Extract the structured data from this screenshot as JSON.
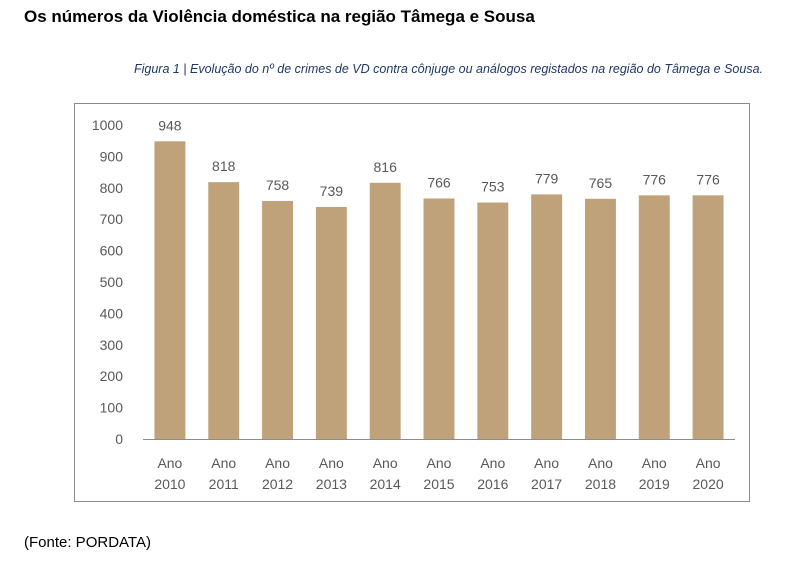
{
  "header": {
    "title": "Os números da Violência doméstica na região Tâmega e Sousa",
    "caption": "Figura 1 | Evolução do nº de crimes de VD contra cônjuge ou análogos registados na região do Tâmega e Sousa."
  },
  "footer": {
    "source": "(Fonte: PORDATA)"
  },
  "chart_data": {
    "type": "bar",
    "categories": [
      "Ano 2010",
      "Ano 2011",
      "Ano 2012",
      "Ano 2013",
      "Ano 2014",
      "Ano 2015",
      "Ano 2016",
      "Ano 2017",
      "Ano 2018",
      "Ano 2019",
      "Ano 2020"
    ],
    "category_lines": [
      [
        "Ano",
        "2010"
      ],
      [
        "Ano",
        "2011"
      ],
      [
        "Ano",
        "2012"
      ],
      [
        "Ano",
        "2013"
      ],
      [
        "Ano",
        "2014"
      ],
      [
        "Ano",
        "2015"
      ],
      [
        "Ano",
        "2016"
      ],
      [
        "Ano",
        "2017"
      ],
      [
        "Ano",
        "2018"
      ],
      [
        "Ano",
        "2019"
      ],
      [
        "Ano",
        "2020"
      ]
    ],
    "values": [
      948,
      818,
      758,
      739,
      816,
      766,
      753,
      779,
      765,
      776,
      776
    ],
    "y_ticks": [
      0,
      100,
      200,
      300,
      400,
      500,
      600,
      700,
      800,
      900,
      1000
    ],
    "ylim": [
      0,
      1000
    ],
    "grid": false,
    "legend": "none",
    "bar_color": "#bfa27a",
    "label_color": "#595959",
    "axis_color": "#8c8c8c",
    "title": "",
    "xlabel": "",
    "ylabel": ""
  }
}
